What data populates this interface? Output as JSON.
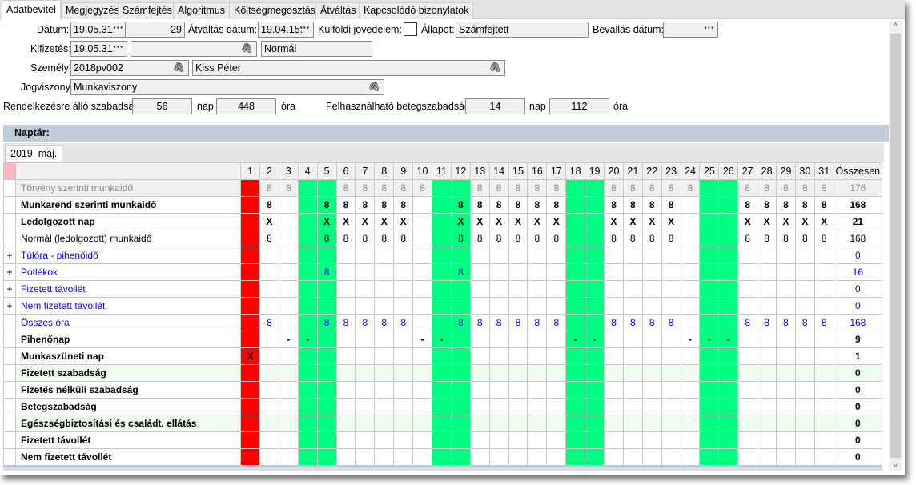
{
  "tabs": [
    "Adatbevitel",
    "Megjegyzés",
    "Számfejtés",
    "Algoritmus",
    "Költségmegosztás",
    "Átváltás",
    "Kapcsolódó bizonylatok"
  ],
  "active_tab": "Adatbevitel",
  "form": {
    "datum_label": "Dátum:",
    "datum": "19.05.31.",
    "slash": "/",
    "sorszam": "29",
    "atvaltas_label": "Átváltás dátum:",
    "atvaltas": "19.04.15.",
    "kulfoldi_label": "Külföldi jövedelem:",
    "kulfoldi_checked": false,
    "allapot_label": "Állapot:",
    "allapot": "Számfejtett",
    "bevallas_label": "Bevallás dátum:",
    "bevallas": "",
    "kifizetes_label": "Kifizetés:",
    "kifizetes": "19.05.31.",
    "kifizetes_ref": "",
    "kifizetes_tipus": "Normál",
    "szemely_label": "Személy:",
    "szemely_kod": "2018pv002",
    "szemely_nev": "Kiss Péter",
    "jogviszony_label": "Jogviszony:",
    "jogviszony": "Munkaviszony",
    "szabadsag_label": "Rendelkezésre álló szabadság:",
    "szabadsag_nap": "56",
    "nap_unit": "nap",
    "szabadsag_ora": "448",
    "ora_unit": "óra",
    "beteg_label": "Felhasználható betegszabadság:",
    "beteg_nap": "14",
    "beteg_ora": "112",
    "dots": "···",
    "clip": "🖇"
  },
  "naptar": {
    "title": "Naptár:",
    "month_tab": "2019. máj.",
    "days": [
      "1",
      "2",
      "3",
      "4",
      "5",
      "6",
      "7",
      "8",
      "9",
      "10",
      "11",
      "12",
      "13",
      "14",
      "15",
      "16",
      "17",
      "18",
      "19",
      "20",
      "21",
      "22",
      "23",
      "24",
      "25",
      "26",
      "27",
      "28",
      "29",
      "30",
      "31"
    ],
    "total_header": "Összesen",
    "holiday_days": [
      1
    ],
    "weekend_days": [
      4,
      5,
      11,
      12,
      18,
      19,
      25,
      26
    ],
    "colors": {
      "holiday": "#ff0000",
      "weekend": "#00ff80",
      "link": "#0000ff",
      "muted": "#888888",
      "highlight_row": "#f0fbef"
    },
    "rows": [
      {
        "label": "Törvény szerinti munkaidő",
        "style": "muted",
        "values": {
          "2": "8",
          "3": "8",
          "6": "8",
          "7": "8",
          "8": "8",
          "9": "8",
          "10": "8",
          "13": "8",
          "14": "8",
          "15": "8",
          "16": "8",
          "17": "8",
          "20": "8",
          "21": "8",
          "22": "8",
          "23": "8",
          "24": "8",
          "27": "8",
          "28": "8",
          "29": "8",
          "30": "8",
          "31": "8"
        },
        "total": "176"
      },
      {
        "label": "Munkarend szerinti munkaidő",
        "style": "bold",
        "values": {
          "2": "8",
          "5": "8",
          "6": "8",
          "7": "8",
          "8": "8",
          "9": "8",
          "12": "8",
          "13": "8",
          "14": "8",
          "15": "8",
          "16": "8",
          "17": "8",
          "20": "8",
          "21": "8",
          "22": "8",
          "23": "8",
          "27": "8",
          "28": "8",
          "29": "8",
          "30": "8",
          "31": "8"
        },
        "total": "168"
      },
      {
        "label": "Ledolgozott nap",
        "style": "bold",
        "values": {
          "2": "X",
          "5": "X",
          "6": "X",
          "7": "X",
          "8": "X",
          "9": "X",
          "12": "X",
          "13": "X",
          "14": "X",
          "15": "X",
          "16": "X",
          "17": "X",
          "20": "X",
          "21": "X",
          "22": "X",
          "23": "X",
          "27": "X",
          "28": "X",
          "29": "X",
          "30": "X",
          "31": "X"
        },
        "total": "21"
      },
      {
        "label": "Normál (ledolgozott) munkaidő",
        "style": "normal",
        "values": {
          "2": "8",
          "5": "8",
          "6": "8",
          "7": "8",
          "8": "8",
          "9": "8",
          "12": "8",
          "13": "8",
          "14": "8",
          "15": "8",
          "16": "8",
          "17": "8",
          "20": "8",
          "21": "8",
          "22": "8",
          "23": "8",
          "27": "8",
          "28": "8",
          "29": "8",
          "30": "8",
          "31": "8"
        },
        "total": "168"
      },
      {
        "label": "Túlóra - pihenőidő",
        "style": "link",
        "expand": "+",
        "values": {},
        "total": "0"
      },
      {
        "label": "Pótlékok",
        "style": "link",
        "expand": "+",
        "values": {
          "5": "8",
          "12": "8"
        },
        "total": "16"
      },
      {
        "label": "Fizetett távollét",
        "style": "link",
        "expand": "+",
        "values": {},
        "total": "0"
      },
      {
        "label": "Nem fizetett távollét",
        "style": "link",
        "expand": "+",
        "values": {},
        "total": "0"
      },
      {
        "label": "Összes óra",
        "style": "link",
        "values": {
          "2": "8",
          "5": "8",
          "6": "8",
          "7": "8",
          "8": "8",
          "9": "8",
          "12": "8",
          "13": "8",
          "14": "8",
          "15": "8",
          "16": "8",
          "17": "8",
          "20": "8",
          "21": "8",
          "22": "8",
          "23": "8",
          "27": "8",
          "28": "8",
          "29": "8",
          "30": "8",
          "31": "8"
        },
        "total": "168"
      },
      {
        "label": "Pihenőnap",
        "style": "bold",
        "values": {
          "3": "-",
          "4": "-",
          "10": "-",
          "11": "-",
          "18": "-",
          "19": "-",
          "24": "-",
          "25": "-",
          "26": "-"
        },
        "total": "9"
      },
      {
        "label": "Munkaszüneti nap",
        "style": "bold",
        "values": {
          "1": "X"
        },
        "total": "1"
      },
      {
        "label": "Fizetett szabadság",
        "style": "bold",
        "highlight": true,
        "values": {},
        "total": "0"
      },
      {
        "label": "Fizetés nélküli szabadság",
        "style": "bold",
        "values": {},
        "total": "0"
      },
      {
        "label": "Betegszabadság",
        "style": "bold",
        "values": {},
        "total": "0"
      },
      {
        "label": "Egészségbiztosítási és családt. ellátás",
        "style": "bold",
        "highlight": true,
        "values": {},
        "total": "0"
      },
      {
        "label": "Fizetett távollét",
        "style": "bold",
        "values": {},
        "total": "0"
      },
      {
        "label": "Nem fizetett távollét",
        "style": "bold",
        "values": {},
        "total": "0"
      }
    ]
  },
  "scrollbar": {
    "up": "˄",
    "down": "˅"
  }
}
